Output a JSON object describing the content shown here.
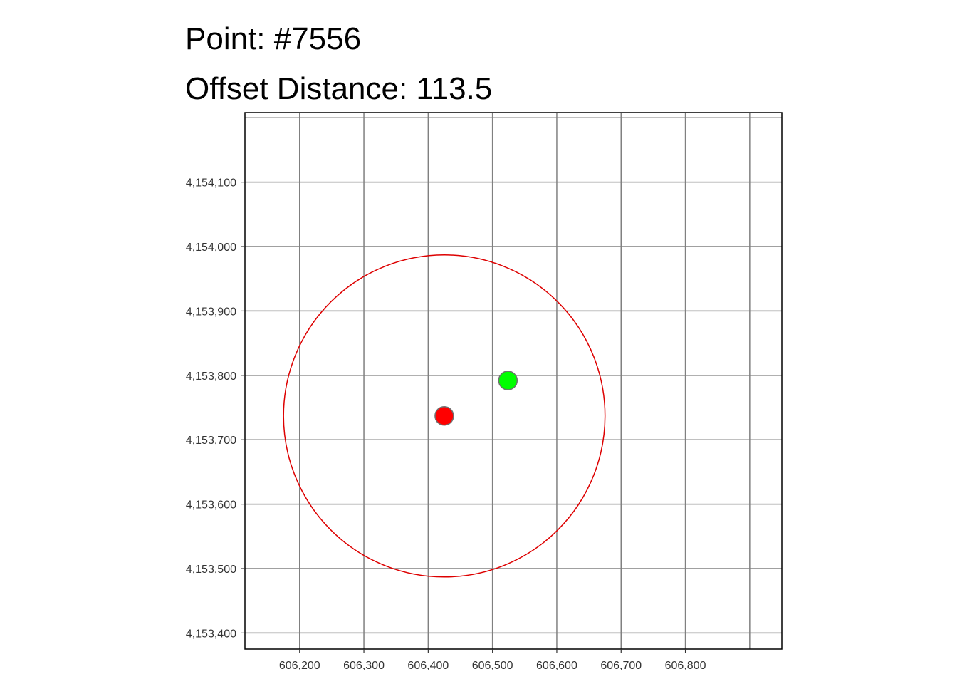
{
  "title_lines": [
    "Point: #7556",
    "Offset Distance: 113.5"
  ],
  "chart_data": {
    "type": "scatter",
    "title": "Point: #7556",
    "subtitle": "Offset Distance: 113.5",
    "xlabel": "",
    "ylabel": "",
    "xlim": [
      606115,
      606950
    ],
    "ylim": [
      4153375,
      4154208
    ],
    "x_ticks": [
      606200,
      606300,
      606400,
      606500,
      606600,
      606700,
      606800
    ],
    "x_tick_labels": [
      "606,200",
      "606,300",
      "606,400",
      "606,500",
      "606,600",
      "606,700",
      "606,800"
    ],
    "y_ticks": [
      4153400,
      4153500,
      4153600,
      4153700,
      4153800,
      4153900,
      4154000,
      4154100
    ],
    "y_tick_labels": [
      "4,153,400",
      "4,153,500",
      "4,153,600",
      "4,153,700",
      "4,153,800",
      "4,153,900",
      "4,154,000",
      "4,154,100"
    ],
    "extra_gridlines_x": [
      606900
    ],
    "extra_gridlines_y": [
      4154200
    ],
    "grid": true,
    "points": [
      {
        "x": 606425,
        "y": 4153737,
        "color": "#ff0000"
      },
      {
        "x": 606524,
        "y": 4153792,
        "color": "#00ff00"
      }
    ],
    "circle": {
      "cx": 606425,
      "cy": 4153737,
      "r": 250,
      "color": "#dd0000"
    },
    "colors": {
      "grid": "#808080",
      "frame": "#000000",
      "point_outline": "#707070"
    }
  }
}
